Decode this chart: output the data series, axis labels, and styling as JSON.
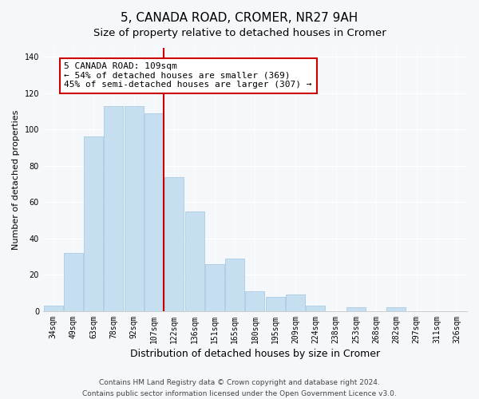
{
  "title": "5, CANADA ROAD, CROMER, NR27 9AH",
  "subtitle": "Size of property relative to detached houses in Cromer",
  "xlabel": "Distribution of detached houses by size in Cromer",
  "ylabel": "Number of detached properties",
  "bar_labels": [
    "34sqm",
    "49sqm",
    "63sqm",
    "78sqm",
    "92sqm",
    "107sqm",
    "122sqm",
    "136sqm",
    "151sqm",
    "165sqm",
    "180sqm",
    "195sqm",
    "209sqm",
    "224sqm",
    "238sqm",
    "253sqm",
    "268sqm",
    "282sqm",
    "297sqm",
    "311sqm",
    "326sqm"
  ],
  "bar_values": [
    3,
    32,
    96,
    113,
    113,
    109,
    74,
    55,
    26,
    29,
    11,
    8,
    9,
    3,
    0,
    2,
    0,
    2,
    0,
    0,
    0
  ],
  "bar_color": "#c5dff0",
  "bar_edge_color": "#a0c4de",
  "vline_color": "#cc0000",
  "annotation_title": "5 CANADA ROAD: 109sqm",
  "annotation_line1": "← 54% of detached houses are smaller (369)",
  "annotation_line2": "45% of semi-detached houses are larger (307) →",
  "annotation_box_color": "#ffffff",
  "annotation_box_edge": "#cc0000",
  "ylim": [
    0,
    145
  ],
  "yticks": [
    0,
    20,
    40,
    60,
    80,
    100,
    120,
    140
  ],
  "footer1": "Contains HM Land Registry data © Crown copyright and database right 2024.",
  "footer2": "Contains public sector information licensed under the Open Government Licence v3.0.",
  "background_color": "#f5f8fb",
  "grid_color": "#ffffff",
  "title_fontsize": 11,
  "subtitle_fontsize": 9.5,
  "xlabel_fontsize": 9,
  "ylabel_fontsize": 8,
  "tick_fontsize": 7,
  "annotation_fontsize": 8,
  "footer_fontsize": 6.5
}
